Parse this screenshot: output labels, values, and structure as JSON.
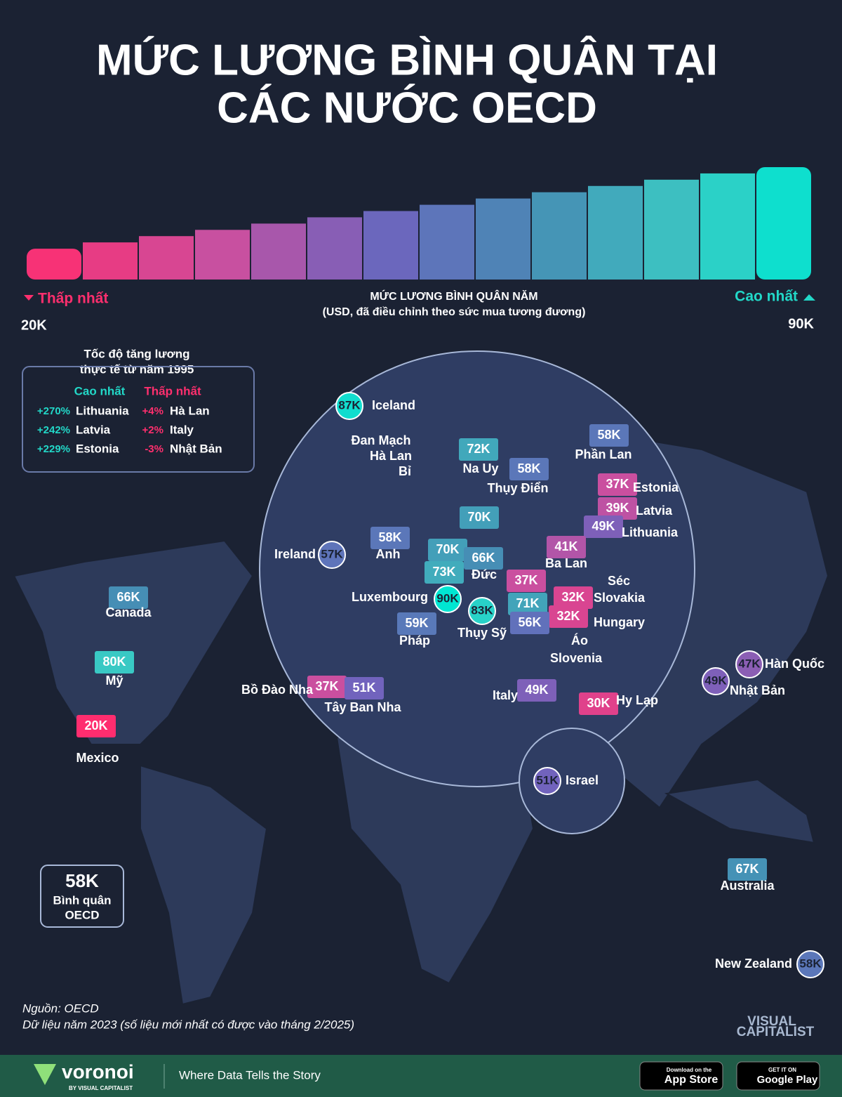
{
  "header": {
    "title_line1": "MỨC LƯƠNG BÌNH QUÂN TẠI",
    "title_line2": "CÁC NƯỚC OECD"
  },
  "scale": {
    "caption_line1": "MỨC LƯƠNG BÌNH QUÂN NĂM",
    "caption_line2": "(USD, đã điều chỉnh theo sức mua tương đương)",
    "low_label": "Thấp nhất",
    "high_label": "Cao nhất",
    "min": {
      "value": 20,
      "label": "20K"
    },
    "max": {
      "value": 90,
      "label": "90K"
    }
  },
  "growth": {
    "title_line1": "Tốc độ tăng lương",
    "title_line2": "thực tế từ năm 1995",
    "high_header": "Cao nhất",
    "low_header": "Thấp nhất",
    "high": [
      {
        "pct": "+270%",
        "country": "Lithuania"
      },
      {
        "pct": "+242%",
        "country": "Latvia"
      },
      {
        "pct": "+229%",
        "country": "Estonia"
      }
    ],
    "low": [
      {
        "pct": "+4%",
        "country": "Hà Lan"
      },
      {
        "pct": "+2%",
        "country": "Italy"
      },
      {
        "pct": "-3%",
        "country": "Nhật Bản"
      }
    ]
  },
  "countries": [
    {
      "name": "Iceland",
      "value": 87,
      "value_label": "87K"
    },
    {
      "name": "Đan Mạch",
      "value": 70,
      "value_label": "70K"
    },
    {
      "name": "Hà Lan",
      "value": 70,
      "value_label": "70K"
    },
    {
      "name": "Bỉ",
      "value": 73,
      "value_label": "73K"
    },
    {
      "name": "Na Uy",
      "value": 72,
      "value_label": "72K"
    },
    {
      "name": "Thụy Điển",
      "value": 58,
      "value_label": "58K"
    },
    {
      "name": "Phần Lan",
      "value": 58,
      "value_label": "58K"
    },
    {
      "name": "Estonia",
      "value": 37,
      "value_label": "37K"
    },
    {
      "name": "Latvia",
      "value": 39,
      "value_label": "39K"
    },
    {
      "name": "Lithuania",
      "value": 49,
      "value_label": "49K"
    },
    {
      "name": "Ireland",
      "value": 57,
      "value_label": "57K"
    },
    {
      "name": "Anh",
      "value": 58,
      "value_label": "58K"
    },
    {
      "name": "Đức",
      "value": 66,
      "value_label": "66K"
    },
    {
      "name": "Ba Lan",
      "value": 41,
      "value_label": "41K"
    },
    {
      "name": "Séc",
      "value": 37,
      "value_label": "37K"
    },
    {
      "name": "Slovakia",
      "value": 32,
      "value_label": "32K"
    },
    {
      "name": "Hungary",
      "value": 32,
      "value_label": "32K"
    },
    {
      "name": "Luxembourg",
      "value": 90,
      "value_label": "90K"
    },
    {
      "name": "Thụy Sỹ",
      "value": 83,
      "value_label": "83K"
    },
    {
      "name": "Áo",
      "value": 71,
      "value_label": "71K"
    },
    {
      "name": "Slovenia",
      "value": 56,
      "value_label": "56K"
    },
    {
      "name": "Canada",
      "value": 66,
      "value_label": "66K"
    },
    {
      "name": "Mỹ",
      "value": 80,
      "value_label": "80K"
    },
    {
      "name": "Pháp",
      "value": 59,
      "value_label": "59K"
    },
    {
      "name": "Bồ Đào Nha",
      "value": 37,
      "value_label": "37K"
    },
    {
      "name": "Tây Ban Nha",
      "value": 51,
      "value_label": "51K"
    },
    {
      "name": "Italy",
      "value": 49,
      "value_label": "49K"
    },
    {
      "name": "Hy Lạp",
      "value": 30,
      "value_label": "30K"
    },
    {
      "name": "Hàn Quốc",
      "value": 47,
      "value_label": "47K"
    },
    {
      "name": "Nhật Bản",
      "value": 49,
      "value_label": "49K"
    },
    {
      "name": "Mexico",
      "value": 20,
      "value_label": "20K"
    },
    {
      "name": "Israel",
      "value": 51,
      "value_label": "51K"
    },
    {
      "name": "Australia",
      "value": 67,
      "value_label": "67K"
    },
    {
      "name": "New Zealand",
      "value": 58,
      "value_label": "58K"
    }
  ],
  "oecd_average": {
    "value_label": "58K",
    "label_line1": "Bình quân",
    "label_line2": "OECD"
  },
  "footer": {
    "source": "Nguồn: OECD",
    "note": "Dữ liệu năm 2023 (số liệu mới nhất có được vào tháng 2/2025)",
    "brand": "voronoi",
    "brand_sub": "BY VISUAL CAPITALIST",
    "tagline": "Where Data Tells the Story",
    "app_store_small": "Download on the",
    "app_store": "App Store",
    "google_small": "GET IT ON",
    "google": "Google Play",
    "vc_line1": "VISUAL",
    "vc_line2": "CAPITALIST"
  }
}
